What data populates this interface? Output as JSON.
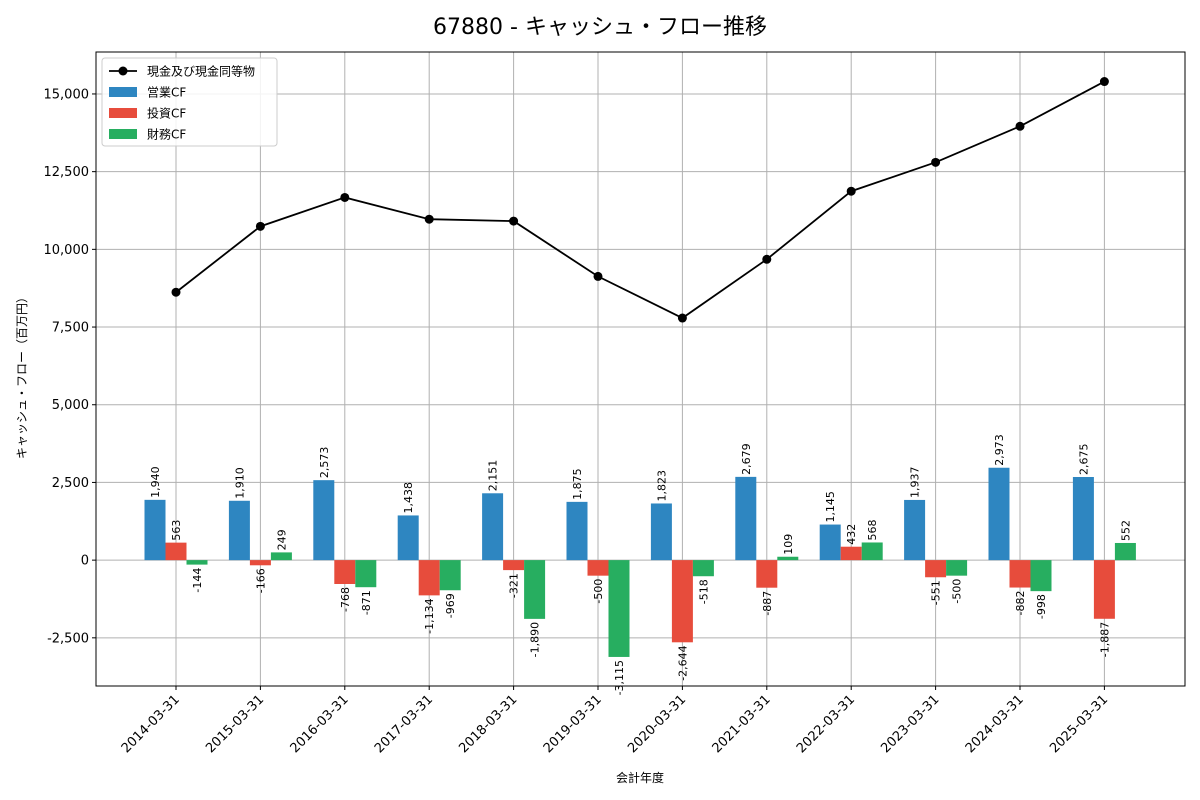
{
  "chart_data": {
    "type": "bar",
    "title": "67880 - キャッシュ・フロー推移",
    "xlabel": "会計年度",
    "ylabel": "キャッシュ・フロー（百万円）",
    "categories": [
      "2014-03-31",
      "2015-03-31",
      "2016-03-31",
      "2017-03-31",
      "2018-03-31",
      "2019-03-31",
      "2020-03-31",
      "2021-03-31",
      "2022-03-31",
      "2023-03-31",
      "2024-03-31",
      "2025-03-31"
    ],
    "ylim": [
      -4050,
      16350
    ],
    "yticks": [
      -2500,
      0,
      2500,
      5000,
      7500,
      10000,
      12500,
      15000
    ],
    "ytick_labels": [
      "-2,500",
      "0",
      "2,500",
      "5,000",
      "7,500",
      "10,000",
      "12,500",
      "15,000"
    ],
    "grid": true,
    "legend_position": "top-left",
    "series": [
      {
        "name": "営業CF",
        "kind": "bar",
        "color": "#2e86c1",
        "values": [
          1940,
          1910,
          2573,
          1438,
          2151,
          1875,
          1823,
          2679,
          1145,
          1937,
          2973,
          2675
        ],
        "labels": [
          "1,940",
          "1,910",
          "2,573",
          "1,438",
          "2,151",
          "1,875",
          "1,823",
          "2,679",
          "1,145",
          "1,937",
          "2,973",
          "2,675"
        ]
      },
      {
        "name": "投資CF",
        "kind": "bar",
        "color": "#e74c3c",
        "values": [
          563,
          -166,
          -768,
          -1134,
          -321,
          -500,
          -2644,
          -887,
          432,
          -551,
          -882,
          -1887
        ],
        "labels": [
          "563",
          "-166",
          "-768",
          "-1,134",
          "-321",
          "-500",
          "-2,644",
          "-887",
          "432",
          "-551",
          "-882",
          "-1,887"
        ]
      },
      {
        "name": "財務CF",
        "kind": "bar",
        "color": "#27ae60",
        "values": [
          -144,
          249,
          -871,
          -969,
          -1890,
          -3115,
          -518,
          109,
          568,
          -500,
          -998,
          552
        ],
        "labels": [
          "-144",
          "249",
          "-871",
          "-969",
          "-1,890",
          "-3,115",
          "-518",
          "109",
          "568",
          "-500",
          "-998",
          "552"
        ]
      },
      {
        "name": "現金及び現金同等物",
        "kind": "line",
        "color": "#000000",
        "values": [
          8620,
          10740,
          11670,
          10970,
          10910,
          9130,
          7790,
          9680,
          11870,
          12800,
          13960,
          15400
        ]
      }
    ]
  }
}
